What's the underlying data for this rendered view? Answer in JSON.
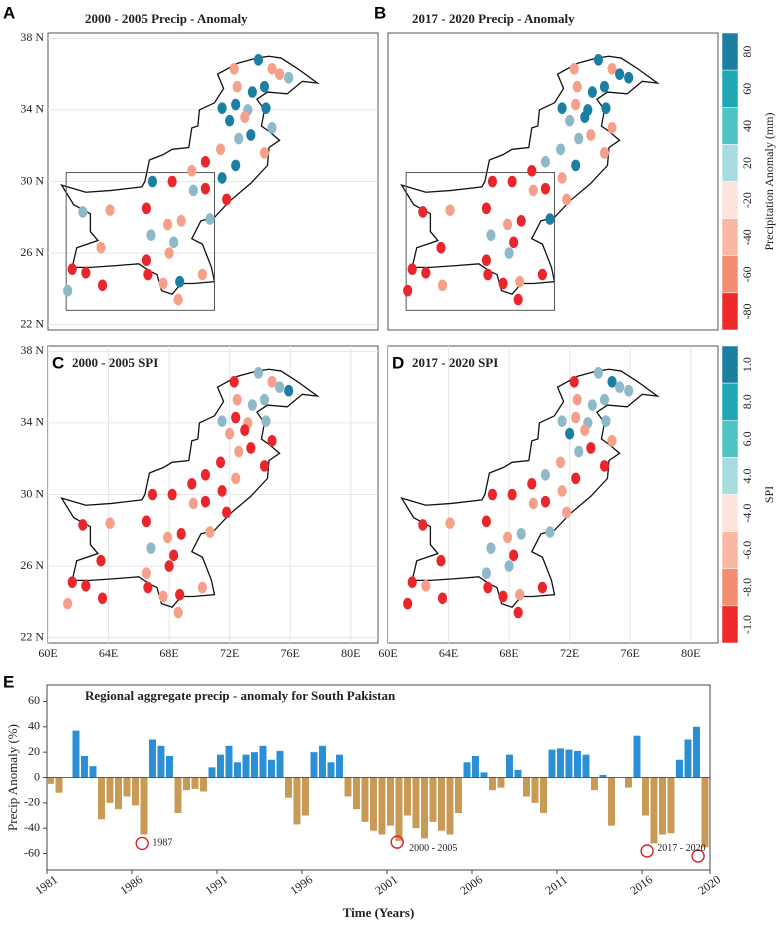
{
  "chart_data": [
    {
      "type": "map",
      "label": "A",
      "title": "2000 - 2005 Precip -  Anomaly",
      "xlim": [
        60,
        81.8
      ],
      "ylim": [
        21.7,
        38.3
      ],
      "yticks": [
        {
          "value": 22,
          "label": "22 N"
        },
        {
          "value": 26,
          "label": "26 N"
        },
        {
          "value": 30,
          "label": "30 N"
        },
        {
          "value": 34,
          "label": "34 N"
        },
        {
          "value": 38,
          "label": "38 N"
        }
      ],
      "x": [
        72.3,
        73.9,
        74.8,
        75.3,
        75.9,
        72.5,
        73.5,
        74.3,
        71.5,
        72.4,
        73.2,
        74.4,
        72.0,
        73.0,
        74.8,
        72.6,
        73.4,
        74.3,
        71.4,
        70.4,
        72.4,
        71.5,
        69.5,
        70.4,
        66.9,
        68.2,
        69.6,
        71.8,
        62.3,
        64.1,
        66.5,
        67.9,
        68.8,
        70.7,
        66.8,
        68.3,
        63.5,
        66.5,
        68.0,
        61.6,
        62.5,
        63.6,
        66.6,
        67.6,
        68.7,
        70.2,
        61.3,
        68.6
      ],
      "values": [
        36.3,
        36.8,
        36.3,
        36.0,
        35.8,
        35.3,
        35.0,
        35.3,
        34.1,
        34.3,
        34.0,
        34.1,
        33.4,
        33.6,
        33.0,
        32.4,
        32.6,
        31.6,
        31.8,
        31.1,
        30.9,
        30.2,
        30.6,
        29.6,
        30.0,
        30.0,
        29.5,
        29.0,
        28.3,
        28.4,
        28.5,
        27.6,
        27.8,
        27.9,
        27.0,
        26.6,
        26.3,
        25.6,
        26.0,
        25.1,
        24.9,
        24.2,
        24.8,
        24.3,
        24.4,
        24.8,
        23.9,
        23.4
      ],
      "colors": [
        "#f4a08a",
        "#1b7fa3",
        "#f4a08a",
        "#f4a08a",
        "#8db9c9",
        "#f4a08a",
        "#1b7fa3",
        "#1b7fa3",
        "#1b7fa3",
        "#1b7fa3",
        "#8db9c9",
        "#1b7fa3",
        "#1b7fa3",
        "#f4a08a",
        "#8db9c9",
        "#8db9c9",
        "#1b7fa3",
        "#f4a08a",
        "#f4a08a",
        "#e8262b",
        "#1b7fa3",
        "#1b7fa3",
        "#f4a08a",
        "#e8262b",
        "#1b7fa3",
        "#e8262b",
        "#8db9c9",
        "#e8262b",
        "#8db9c9",
        "#f4a08a",
        "#e8262b",
        "#f4a08a",
        "#f4a08a",
        "#8db9c9",
        "#8db9c9",
        "#8db9c9",
        "#f4a08a",
        "#e8262b",
        "#f4a08a",
        "#e8262b",
        "#e8262b",
        "#e8262b",
        "#e8262b",
        "#f4a08a",
        "#1b7fa3",
        "#f4a08a",
        "#8db9c9",
        "#f4a08a"
      ]
    },
    {
      "type": "map",
      "label": "B",
      "title": "2017 - 2020 Precip -  Anomaly",
      "xlim": [
        60,
        81.8
      ],
      "ylim": [
        21.7,
        38.3
      ],
      "x": [
        72.3,
        73.9,
        74.8,
        75.3,
        75.9,
        72.5,
        73.5,
        74.3,
        71.5,
        72.4,
        73.2,
        74.4,
        72.0,
        73.0,
        74.8,
        72.6,
        73.4,
        74.3,
        71.4,
        70.4,
        72.4,
        71.5,
        69.5,
        70.4,
        66.9,
        68.2,
        69.6,
        71.8,
        62.3,
        64.1,
        66.5,
        67.9,
        68.8,
        70.7,
        66.8,
        68.3,
        63.5,
        66.5,
        68.0,
        61.6,
        62.5,
        63.6,
        66.6,
        67.6,
        68.7,
        70.2,
        61.3,
        68.6
      ],
      "values": [
        36.3,
        36.8,
        36.3,
        36.0,
        35.8,
        35.3,
        35.0,
        35.3,
        34.1,
        34.3,
        34.0,
        34.1,
        33.4,
        33.6,
        33.0,
        32.4,
        32.6,
        31.6,
        31.8,
        31.1,
        30.9,
        30.2,
        30.6,
        29.6,
        30.0,
        30.0,
        29.5,
        29.0,
        28.3,
        28.4,
        28.5,
        27.6,
        27.8,
        27.9,
        27.0,
        26.6,
        26.3,
        25.6,
        26.0,
        25.1,
        24.9,
        24.2,
        24.8,
        24.3,
        24.4,
        24.8,
        23.9,
        23.4
      ],
      "colors": [
        "#f4a08a",
        "#1b7fa3",
        "#f4a08a",
        "#1b7fa3",
        "#1b7fa3",
        "#f4a08a",
        "#1b7fa3",
        "#1b7fa3",
        "#1b7fa3",
        "#f4a08a",
        "#1b7fa3",
        "#1b7fa3",
        "#8db9c9",
        "#1b7fa3",
        "#f4a08a",
        "#8db9c9",
        "#f4a08a",
        "#f4a08a",
        "#8db9c9",
        "#8db9c9",
        "#1b7fa3",
        "#f4a08a",
        "#e8262b",
        "#e8262b",
        "#e8262b",
        "#e8262b",
        "#f4a08a",
        "#f4a08a",
        "#e8262b",
        "#f4a08a",
        "#e8262b",
        "#f4a08a",
        "#e8262b",
        "#1b7fa3",
        "#8db9c9",
        "#e8262b",
        "#e8262b",
        "#e8262b",
        "#8db9c9",
        "#e8262b",
        "#e8262b",
        "#f4a08a",
        "#e8262b",
        "#e8262b",
        "#f4a08a",
        "#e8262b",
        "#e8262b",
        "#e8262b"
      ],
      "colorbar": {
        "label": "Precipitation Anomaly (mm)",
        "ticks": [
          "80",
          "60",
          "40",
          "20",
          "-20",
          "-40",
          "-60",
          "-80"
        ],
        "colors": [
          "#1a7fa0",
          "#1ea8b3",
          "#4fc2c4",
          "#a8dde0",
          "#fde3dc",
          "#f9b8a4",
          "#f48e72",
          "#ee2a2a"
        ]
      }
    },
    {
      "type": "map",
      "label": "C",
      "title": "2000 - 2005 SPI",
      "xlim": [
        60,
        81.8
      ],
      "ylim": [
        21.7,
        38.3
      ],
      "yticks": [
        {
          "value": 22,
          "label": "22 N"
        },
        {
          "value": 26,
          "label": "26 N"
        },
        {
          "value": 30,
          "label": "30 N"
        },
        {
          "value": 34,
          "label": "34 N"
        },
        {
          "value": 38,
          "label": "38 N"
        }
      ],
      "xticks": [
        {
          "value": 60,
          "label": "60E"
        },
        {
          "value": 64,
          "label": "64E"
        },
        {
          "value": 68,
          "label": "68E"
        },
        {
          "value": 72,
          "label": "72E"
        },
        {
          "value": 76,
          "label": "76E"
        },
        {
          "value": 80,
          "label": "80E"
        }
      ],
      "x": [
        72.3,
        73.9,
        74.8,
        75.3,
        75.9,
        72.5,
        73.5,
        74.3,
        71.5,
        72.4,
        73.2,
        74.4,
        72.0,
        73.0,
        74.8,
        72.6,
        73.4,
        74.3,
        71.4,
        70.4,
        72.4,
        71.5,
        69.5,
        70.4,
        66.9,
        68.2,
        69.6,
        71.8,
        62.3,
        64.1,
        66.5,
        67.9,
        68.8,
        70.7,
        66.8,
        68.3,
        63.5,
        66.5,
        68.0,
        61.6,
        62.5,
        63.6,
        66.6,
        67.6,
        68.7,
        70.2,
        61.3,
        68.6
      ],
      "values": [
        36.3,
        36.8,
        36.3,
        36.0,
        35.8,
        35.3,
        35.0,
        35.3,
        34.1,
        34.3,
        34.0,
        34.1,
        33.4,
        33.6,
        33.0,
        32.4,
        32.6,
        31.6,
        31.8,
        31.1,
        30.9,
        30.2,
        30.6,
        29.6,
        30.0,
        30.0,
        29.5,
        29.0,
        28.3,
        28.4,
        28.5,
        27.6,
        27.8,
        27.9,
        27.0,
        26.6,
        26.3,
        25.6,
        26.0,
        25.1,
        24.9,
        24.2,
        24.8,
        24.3,
        24.4,
        24.8,
        23.9,
        23.4
      ],
      "colors": [
        "#e8262b",
        "#8db9c9",
        "#f4a08a",
        "#8db9c9",
        "#1b7fa3",
        "#f4a08a",
        "#8db9c9",
        "#8db9c9",
        "#8db9c9",
        "#e8262b",
        "#f4a08a",
        "#8db9c9",
        "#f4a08a",
        "#e8262b",
        "#e8262b",
        "#f4a08a",
        "#e8262b",
        "#e8262b",
        "#e8262b",
        "#e8262b",
        "#f4a08a",
        "#e8262b",
        "#e8262b",
        "#e8262b",
        "#e8262b",
        "#e8262b",
        "#f4a08a",
        "#e8262b",
        "#e8262b",
        "#f4a08a",
        "#e8262b",
        "#f4a08a",
        "#e8262b",
        "#f4a08a",
        "#8db9c9",
        "#e8262b",
        "#e8262b",
        "#f4a08a",
        "#e8262b",
        "#e8262b",
        "#e8262b",
        "#e8262b",
        "#e8262b",
        "#f4a08a",
        "#e8262b",
        "#f4a08a",
        "#f4a08a",
        "#f4a08a"
      ]
    },
    {
      "type": "map",
      "label": "D",
      "title": "2017 - 2020 SPI",
      "xlim": [
        60,
        81.8
      ],
      "ylim": [
        21.7,
        38.3
      ],
      "xticks": [
        {
          "value": 60,
          "label": "60E"
        },
        {
          "value": 64,
          "label": "64E"
        },
        {
          "value": 68,
          "label": "68E"
        },
        {
          "value": 72,
          "label": "72E"
        },
        {
          "value": 76,
          "label": "76E"
        },
        {
          "value": 80,
          "label": "80E"
        }
      ],
      "x": [
        72.3,
        73.9,
        74.8,
        75.3,
        75.9,
        72.5,
        73.5,
        74.3,
        71.5,
        72.4,
        73.2,
        74.4,
        72.0,
        73.0,
        74.8,
        72.6,
        73.4,
        74.3,
        71.4,
        70.4,
        72.4,
        71.5,
        69.5,
        70.4,
        66.9,
        68.2,
        69.6,
        71.8,
        62.3,
        64.1,
        66.5,
        67.9,
        68.8,
        70.7,
        66.8,
        68.3,
        63.5,
        66.5,
        68.0,
        61.6,
        62.5,
        63.6,
        66.6,
        67.6,
        68.7,
        70.2,
        61.3,
        68.6
      ],
      "values": [
        36.3,
        36.8,
        36.3,
        36.0,
        35.8,
        35.3,
        35.0,
        35.3,
        34.1,
        34.3,
        34.0,
        34.1,
        33.4,
        33.6,
        33.0,
        32.4,
        32.6,
        31.6,
        31.8,
        31.1,
        30.9,
        30.2,
        30.6,
        29.6,
        30.0,
        30.0,
        29.5,
        29.0,
        28.3,
        28.4,
        28.5,
        27.6,
        27.8,
        27.9,
        27.0,
        26.6,
        26.3,
        25.6,
        26.0,
        25.1,
        24.9,
        24.2,
        24.8,
        24.3,
        24.4,
        24.8,
        23.9,
        23.4
      ],
      "colors": [
        "#e8262b",
        "#8db9c9",
        "#1b7fa3",
        "#8db9c9",
        "#8db9c9",
        "#f4a08a",
        "#8db9c9",
        "#8db9c9",
        "#8db9c9",
        "#f4a08a",
        "#8db9c9",
        "#8db9c9",
        "#1b7fa3",
        "#f4a08a",
        "#f4a08a",
        "#8db9c9",
        "#e8262b",
        "#e8262b",
        "#f4a08a",
        "#8db9c9",
        "#e8262b",
        "#f4a08a",
        "#e8262b",
        "#e8262b",
        "#e8262b",
        "#e8262b",
        "#f4a08a",
        "#f4a08a",
        "#e8262b",
        "#f4a08a",
        "#e8262b",
        "#f4a08a",
        "#8db9c9",
        "#8db9c9",
        "#8db9c9",
        "#e8262b",
        "#e8262b",
        "#8db9c9",
        "#8db9c9",
        "#e8262b",
        "#f4a08a",
        "#e8262b",
        "#e8262b",
        "#e8262b",
        "#f4a08a",
        "#e8262b",
        "#e8262b",
        "#e8262b"
      ],
      "colorbar": {
        "label": "SPI",
        "ticks": [
          "1.0",
          "8.0",
          "6.0",
          "4.0",
          "-4.0",
          "-6.0",
          "-8.0",
          "-1.0"
        ],
        "colors": [
          "#1a7fa0",
          "#1ea8b3",
          "#4fc2c4",
          "#a8dde0",
          "#fde3dc",
          "#f9b8a4",
          "#f48e72",
          "#ee2a2a"
        ]
      }
    },
    {
      "type": "bar",
      "label": "E",
      "title": "Regional aggregate precip - anomaly for South Pakistan",
      "xlabel": "Time (Years)",
      "ylabel": "Precip Anomaly (%)",
      "xlim": [
        1981,
        2020
      ],
      "ylim": [
        -73,
        73
      ],
      "xticks": [
        1981,
        1986,
        1991,
        1996,
        2001,
        2006,
        2011,
        2016,
        2020
      ],
      "yticks": [
        -60,
        -40,
        -20,
        0,
        20,
        40,
        60
      ],
      "positive_color": "#2b8fd6",
      "negative_color": "#c89a55",
      "x": [
        1981,
        1981.5,
        1982,
        1982.5,
        1983,
        1983.5,
        1984,
        1984.5,
        1985,
        1985.5,
        1986,
        1986.5,
        1987,
        1987.5,
        1988,
        1988.5,
        1989,
        1989.5,
        1990,
        1990.5,
        1991,
        1991.5,
        1992,
        1992.5,
        1993,
        1993.5,
        1994,
        1994.5,
        1995,
        1995.5,
        1996,
        1996.5,
        1997,
        1997.5,
        1998,
        1998.5,
        1999,
        1999.5,
        2000,
        2000.5,
        2001,
        2001.5,
        2002,
        2002.5,
        2003,
        2003.5,
        2004,
        2004.5,
        2005,
        2005.5,
        2006,
        2006.5,
        2007,
        2007.5,
        2008,
        2008.5,
        2009,
        2009.5,
        2010,
        2010.5,
        2011,
        2011.5,
        2012,
        2012.5,
        2013,
        2013.5,
        2014,
        2014.5,
        2015,
        2015.5,
        2016,
        2016.5,
        2017,
        2017.5,
        2018,
        2018.5,
        2019,
        2019.5
      ],
      "values": [
        -5,
        -12,
        0,
        37,
        17,
        9,
        -33,
        -20,
        -25,
        -15,
        -22,
        -45,
        30,
        25,
        17,
        -28,
        -10,
        -9,
        -11,
        8,
        18,
        25,
        12,
        18,
        20,
        25,
        14,
        21,
        -16,
        -37,
        -30,
        20,
        25,
        12,
        18,
        -15,
        -25,
        -35,
        -42,
        -45,
        -38,
        -50,
        -30,
        -40,
        -48,
        -35,
        -42,
        -45,
        -28,
        12,
        17,
        4,
        -10,
        -8,
        18,
        6,
        -15,
        -20,
        -28,
        22,
        23,
        22,
        21,
        18,
        -10,
        2,
        -38,
        0,
        -8,
        33,
        -30,
        -52,
        -45,
        -44,
        14,
        30,
        40,
        -55
      ],
      "annotations": [
        {
          "text": "1987",
          "x": 1987.2,
          "y": -52
        },
        {
          "text": "2000 - 2005",
          "x": 2002.3,
          "y": -56
        },
        {
          "text": "2017 - 2020",
          "x": 2016.9,
          "y": -56
        }
      ],
      "circles": [
        {
          "x": 1986.6,
          "y": -52
        },
        {
          "x": 2001.6,
          "y": -51
        },
        {
          "x": 2016.3,
          "y": -58
        },
        {
          "x": 2019.3,
          "y": -62
        }
      ]
    }
  ]
}
